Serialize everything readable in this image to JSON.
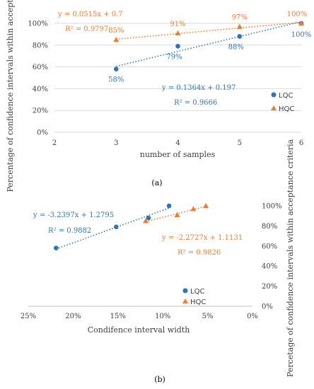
{
  "chart_data": [
    {
      "type": "scatter",
      "caption": "(a)",
      "xlabel": "number of samples",
      "ylabel": "Percentage of confidence intervals within acceptance criteria",
      "xlim": [
        2,
        6
      ],
      "ylim": [
        0,
        100
      ],
      "xticks": [
        "2",
        "3",
        "4",
        "5",
        "6"
      ],
      "yticks": [
        "0%",
        "20%",
        "40%",
        "60%",
        "80%",
        "100%"
      ],
      "series": [
        {
          "name": "LQC",
          "color": "#2e75b6",
          "marker": "circle",
          "x": [
            3,
            4,
            5,
            6
          ],
          "y": [
            58,
            79,
            88,
            100
          ],
          "labels": [
            "58%",
            "79%",
            "88%",
            "100%"
          ],
          "trend": {
            "slope": 0.1364,
            "intercept": 0.197,
            "equation": "y = 0.1364x + 0.197",
            "r2": "R² = 0.9666"
          }
        },
        {
          "name": "HQC",
          "color": "#ed7d31",
          "marker": "triangle",
          "x": [
            3,
            4,
            5,
            6
          ],
          "y": [
            85,
            91,
            97,
            100
          ],
          "labels": [
            "85%",
            "91%",
            "97%",
            "100%"
          ],
          "trend": {
            "slope": 0.0515,
            "intercept": 0.7,
            "equation": "y = 0.0515x + 0.7",
            "r2": "R² = 0.9797"
          }
        }
      ],
      "legend_position": "right"
    },
    {
      "type": "scatter",
      "caption": "(b)",
      "xlabel": "Condifence interval width",
      "ylabel": "Percetage of confidence intervals within acceptance criteria",
      "xlim": [
        25,
        0
      ],
      "ylim": [
        0,
        100
      ],
      "x_reversed": true,
      "xticks": [
        "25%",
        "20%",
        "15%",
        "10%",
        "5%",
        "0%"
      ],
      "yticks": [
        "0%",
        "20%",
        "40%",
        "60%",
        "80%",
        "100%"
      ],
      "series": [
        {
          "name": "LQC",
          "color": "#2e75b6",
          "marker": "circle",
          "x": [
            21.9,
            15.2,
            11.6,
            9.3
          ],
          "y": [
            58,
            79,
            88,
            100
          ],
          "trend": {
            "slope": -3.2397,
            "intercept": 1.2795,
            "equation": "y = -3.2397x + 1.2795",
            "r2": "R² = 0.9882"
          }
        },
        {
          "name": "HQC",
          "color": "#ed7d31",
          "marker": "triangle",
          "x": [
            11.9,
            8.4,
            6.6,
            5.2
          ],
          "y": [
            85,
            91,
            97,
            100
          ],
          "trend": {
            "slope": -2.2727,
            "intercept": 1.1131,
            "equation": "y = -2.2727x + 1.1131",
            "r2": "R² = 0.9826"
          }
        }
      ],
      "legend_position": "center-right"
    }
  ]
}
